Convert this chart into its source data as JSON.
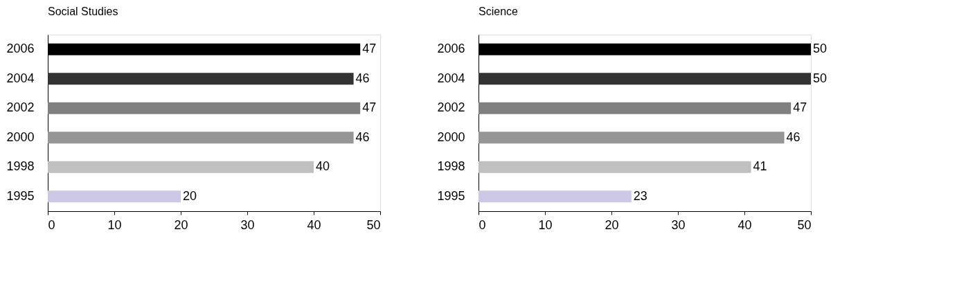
{
  "chart_data": [
    {
      "type": "bar",
      "orientation": "horizontal",
      "title": "Social Studies",
      "categories": [
        "2006",
        "2004",
        "2002",
        "2000",
        "1998",
        "1995"
      ],
      "values": [
        47,
        46,
        47,
        46,
        40,
        20
      ],
      "colors": [
        "#000000",
        "#333333",
        "#808080",
        "#969696",
        "#c0c0c0",
        "#ccc8e6"
      ],
      "xlim": [
        0,
        50
      ],
      "xticks": [
        0,
        10,
        20,
        30,
        40,
        50
      ],
      "data_labels": true,
      "grid": false
    },
    {
      "type": "bar",
      "orientation": "horizontal",
      "title": "Science",
      "categories": [
        "2006",
        "2004",
        "2002",
        "2000",
        "1998",
        "1995"
      ],
      "values": [
        50,
        50,
        47,
        46,
        41,
        23
      ],
      "colors": [
        "#000000",
        "#333333",
        "#808080",
        "#969696",
        "#c0c0c0",
        "#ccc8e6"
      ],
      "xlim": [
        0,
        50
      ],
      "xticks": [
        0,
        10,
        20,
        30,
        40,
        50
      ],
      "data_labels": true,
      "grid": false
    }
  ]
}
